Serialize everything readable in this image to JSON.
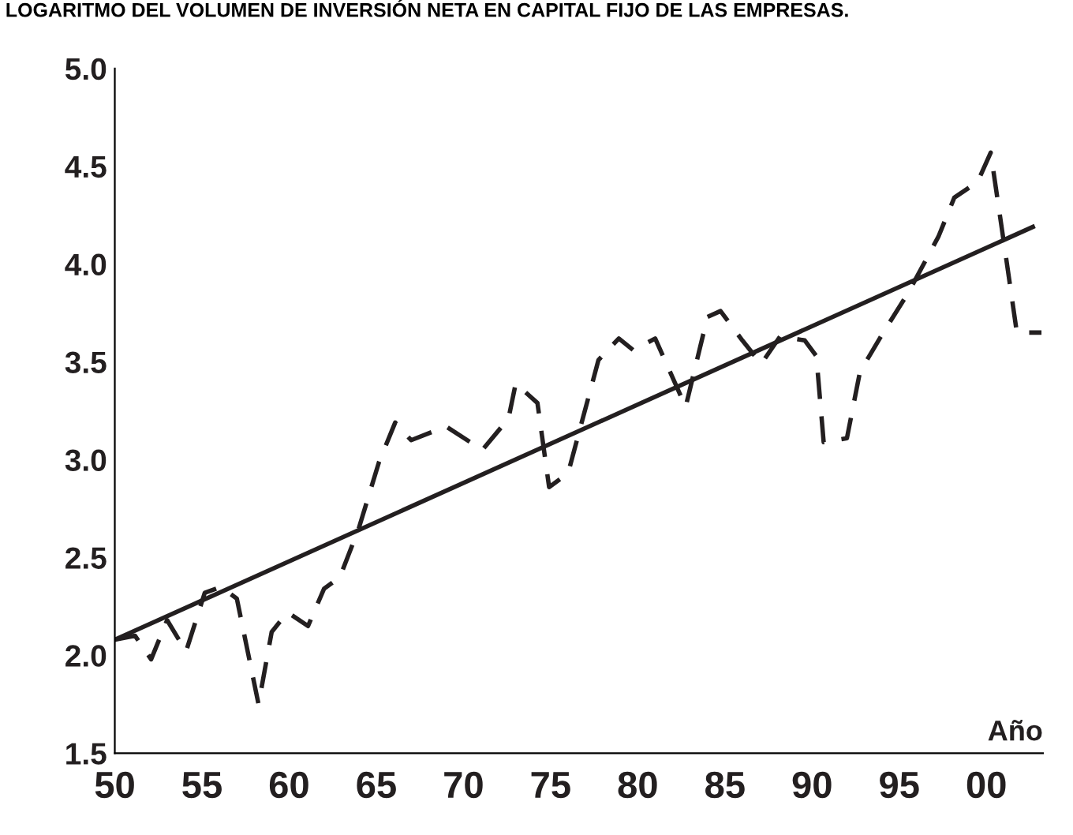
{
  "chart_data": {
    "type": "line",
    "title": "LOGARITMO DEL VOLUMEN DE INVERSIÓN NETA EN CAPITAL FIJO DE LAS EMPRESAS.",
    "xlabel": "Año",
    "xlim": [
      "1950-01",
      "2003-04"
    ],
    "ylim": [
      1.5,
      5.0
    ],
    "xticks": [
      {
        "value": "1950",
        "label": "50"
      },
      {
        "value": "1955",
        "label": "55"
      },
      {
        "value": "1960",
        "label": "60"
      },
      {
        "value": "1965",
        "label": "65"
      },
      {
        "value": "1970",
        "label": "70"
      },
      {
        "value": "1975",
        "label": "75"
      },
      {
        "value": "1980",
        "label": "80"
      },
      {
        "value": "1985",
        "label": "85"
      },
      {
        "value": "1990",
        "label": "90"
      },
      {
        "value": "1995",
        "label": "95"
      },
      {
        "value": "2000",
        "label": "00"
      }
    ],
    "yticks": [
      {
        "value": 1.5,
        "label": "1.5"
      },
      {
        "value": 2.0,
        "label": "2.0"
      },
      {
        "value": 2.5,
        "label": "2.5"
      },
      {
        "value": 3.0,
        "label": "3.0"
      },
      {
        "value": 3.5,
        "label": "3.5"
      },
      {
        "value": 4.0,
        "label": "4.0"
      },
      {
        "value": 4.5,
        "label": "4.5"
      },
      {
        "value": 5.0,
        "label": "5.0"
      }
    ],
    "grid": false,
    "series": [
      {
        "color": "#231f20",
        "line_style": "dashed",
        "x": [
          "1950-01",
          "1951-03",
          "1952-02",
          "1953-01",
          "1954-02",
          "1955-03",
          "1956-02",
          "1957-01",
          "1958-04",
          "1959-01",
          "1959-12",
          "1961-02",
          "1962-01",
          "1962-12",
          "1964-01",
          "1965-03",
          "1966-02",
          "1967-01",
          "1969-01",
          "1971-02",
          "1972-08",
          "1973-01",
          "1974-04",
          "1974-12",
          "1976-01",
          "1977-10",
          "1978-12",
          "1979-10",
          "1981-01",
          "1982-10",
          "1984-01",
          "1984-10",
          "1986-01",
          "1987-02",
          "1988-03",
          "1989-08",
          "1990-04",
          "1990-09",
          "1992-01",
          "1992-10",
          "1994-02",
          "1995-07",
          "1997-04",
          "1998-03",
          "1999-07",
          "2000-04",
          "2001-02",
          "2001-10",
          "2003-03"
        ],
        "values": [
          2.08,
          2.1,
          1.98,
          2.18,
          2.02,
          2.32,
          2.35,
          2.29,
          1.75,
          2.12,
          2.22,
          2.15,
          2.34,
          2.4,
          2.65,
          2.99,
          3.19,
          3.1,
          3.17,
          3.05,
          3.21,
          3.39,
          3.29,
          2.86,
          2.93,
          3.51,
          3.62,
          3.56,
          3.62,
          3.27,
          3.73,
          3.76,
          3.61,
          3.49,
          3.63,
          3.61,
          3.53,
          3.09,
          3.11,
          3.45,
          3.65,
          3.85,
          4.14,
          4.34,
          4.42,
          4.57,
          4.06,
          3.65,
          3.65
        ]
      },
      {
        "color": "#231f20",
        "line_style": "solid",
        "x": [
          "1950-01",
          "2002-09"
        ],
        "values": [
          2.08,
          4.19
        ]
      }
    ]
  }
}
